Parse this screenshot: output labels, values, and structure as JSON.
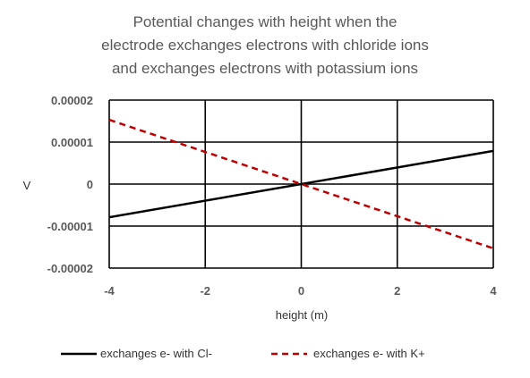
{
  "chart_data": {
    "type": "line",
    "title_lines": [
      "Potential changes with height when the",
      "electrode exchanges electrons with chloride ions",
      "and exchanges electrons with potassium ions"
    ],
    "xlabel": "height (m)",
    "ylabel": "V",
    "xlim": [
      -4,
      4
    ],
    "ylim": [
      -2e-05,
      2e-05
    ],
    "x_ticks": [
      -4,
      -2,
      0,
      2,
      4
    ],
    "x_tick_labels": [
      "-4",
      "-2",
      "0",
      "2",
      "4"
    ],
    "y_ticks": [
      2e-05,
      1e-05,
      0,
      -1e-05,
      -2e-05
    ],
    "y_tick_labels": [
      "0.00002",
      "0.00001",
      "0",
      "-0.00001",
      "-0.00002"
    ],
    "grid": true,
    "legend_position": "bottom",
    "series": [
      {
        "name": "exchanges e- with Cl-",
        "color": "#000000",
        "style": "solid",
        "x": [
          -4,
          4
        ],
        "y": [
          -7.9e-06,
          7.9e-06
        ]
      },
      {
        "name": "exchanges e- with K+",
        "color": "#c00000",
        "style": "dashed",
        "x": [
          -4,
          4
        ],
        "y": [
          1.53e-05,
          -1.53e-05
        ]
      }
    ]
  }
}
